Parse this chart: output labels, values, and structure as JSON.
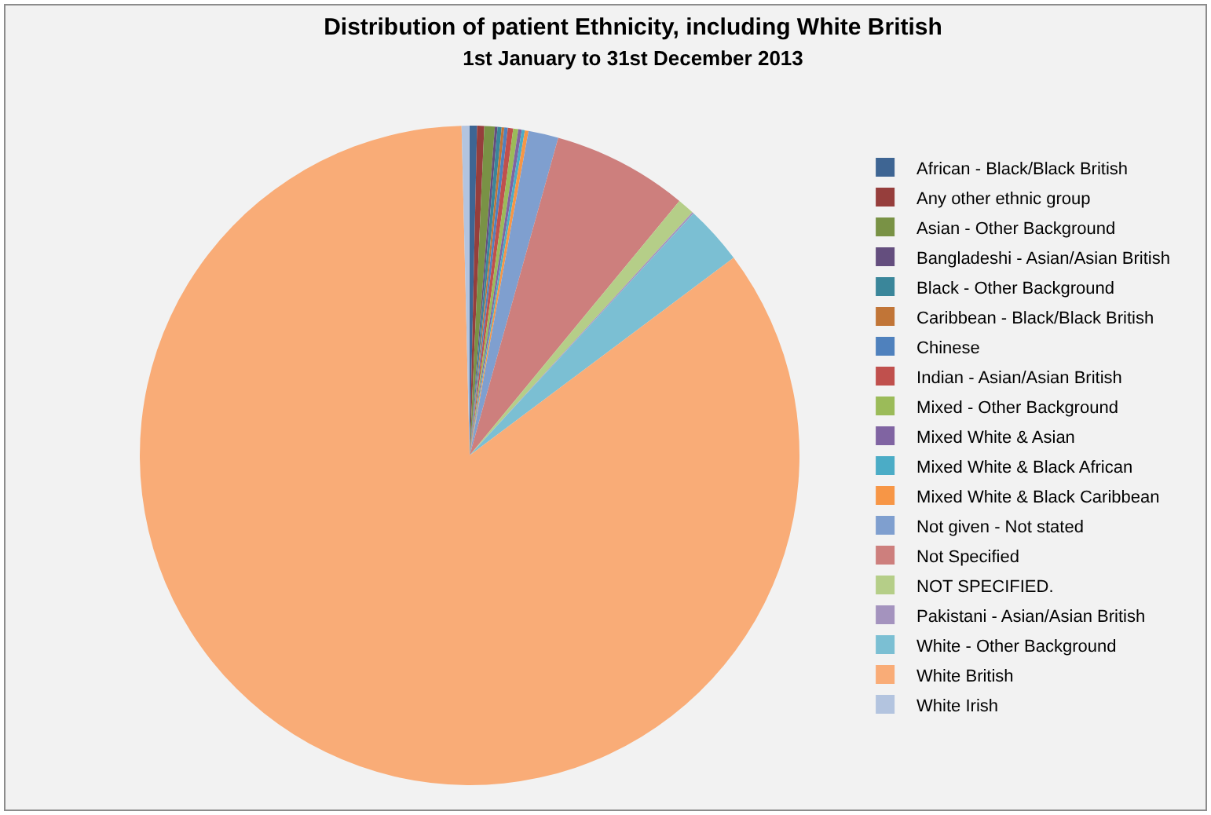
{
  "chart_data": {
    "type": "pie",
    "title": "Distribution of patient Ethnicity, including White British",
    "subtitle": "1st January to 31st December 2013",
    "categories": [
      "African - Black/Black British",
      "Any other ethnic group",
      "Asian - Other Background",
      "Bangladeshi - Asian/Asian British",
      "Black - Other Background",
      "Caribbean - Black/Black British",
      "Chinese",
      "Indian - Asian/Asian British",
      "Mixed - Other Background",
      "Mixed White & Asian",
      "Mixed White & Black African",
      "Mixed White & Black Caribbean",
      "Not given - Not stated",
      "Not Specified",
      "NOT SPECIFIED.",
      "Pakistani - Asian/Asian British",
      "White - Other Background",
      "White British",
      "White Irish"
    ],
    "values": [
      0.36,
      0.35,
      0.51,
      0.13,
      0.2,
      0.13,
      0.17,
      0.26,
      0.25,
      0.17,
      0.15,
      0.18,
      1.47,
      6.64,
      0.83,
      0.08,
      2.89,
      84.84,
      0.39
    ],
    "colors": [
      "#3e6593",
      "#963e3c",
      "#799245",
      "#644e7e",
      "#3a869a",
      "#c17537",
      "#4f81bd",
      "#c0504d",
      "#9bbb59",
      "#8064a2",
      "#4bacc6",
      "#f79646",
      "#7f9fcf",
      "#cd7f7d",
      "#b5ce88",
      "#a493be",
      "#7bbfd3",
      "#f9ac77",
      "#b3c4df"
    ],
    "legend": "right"
  }
}
